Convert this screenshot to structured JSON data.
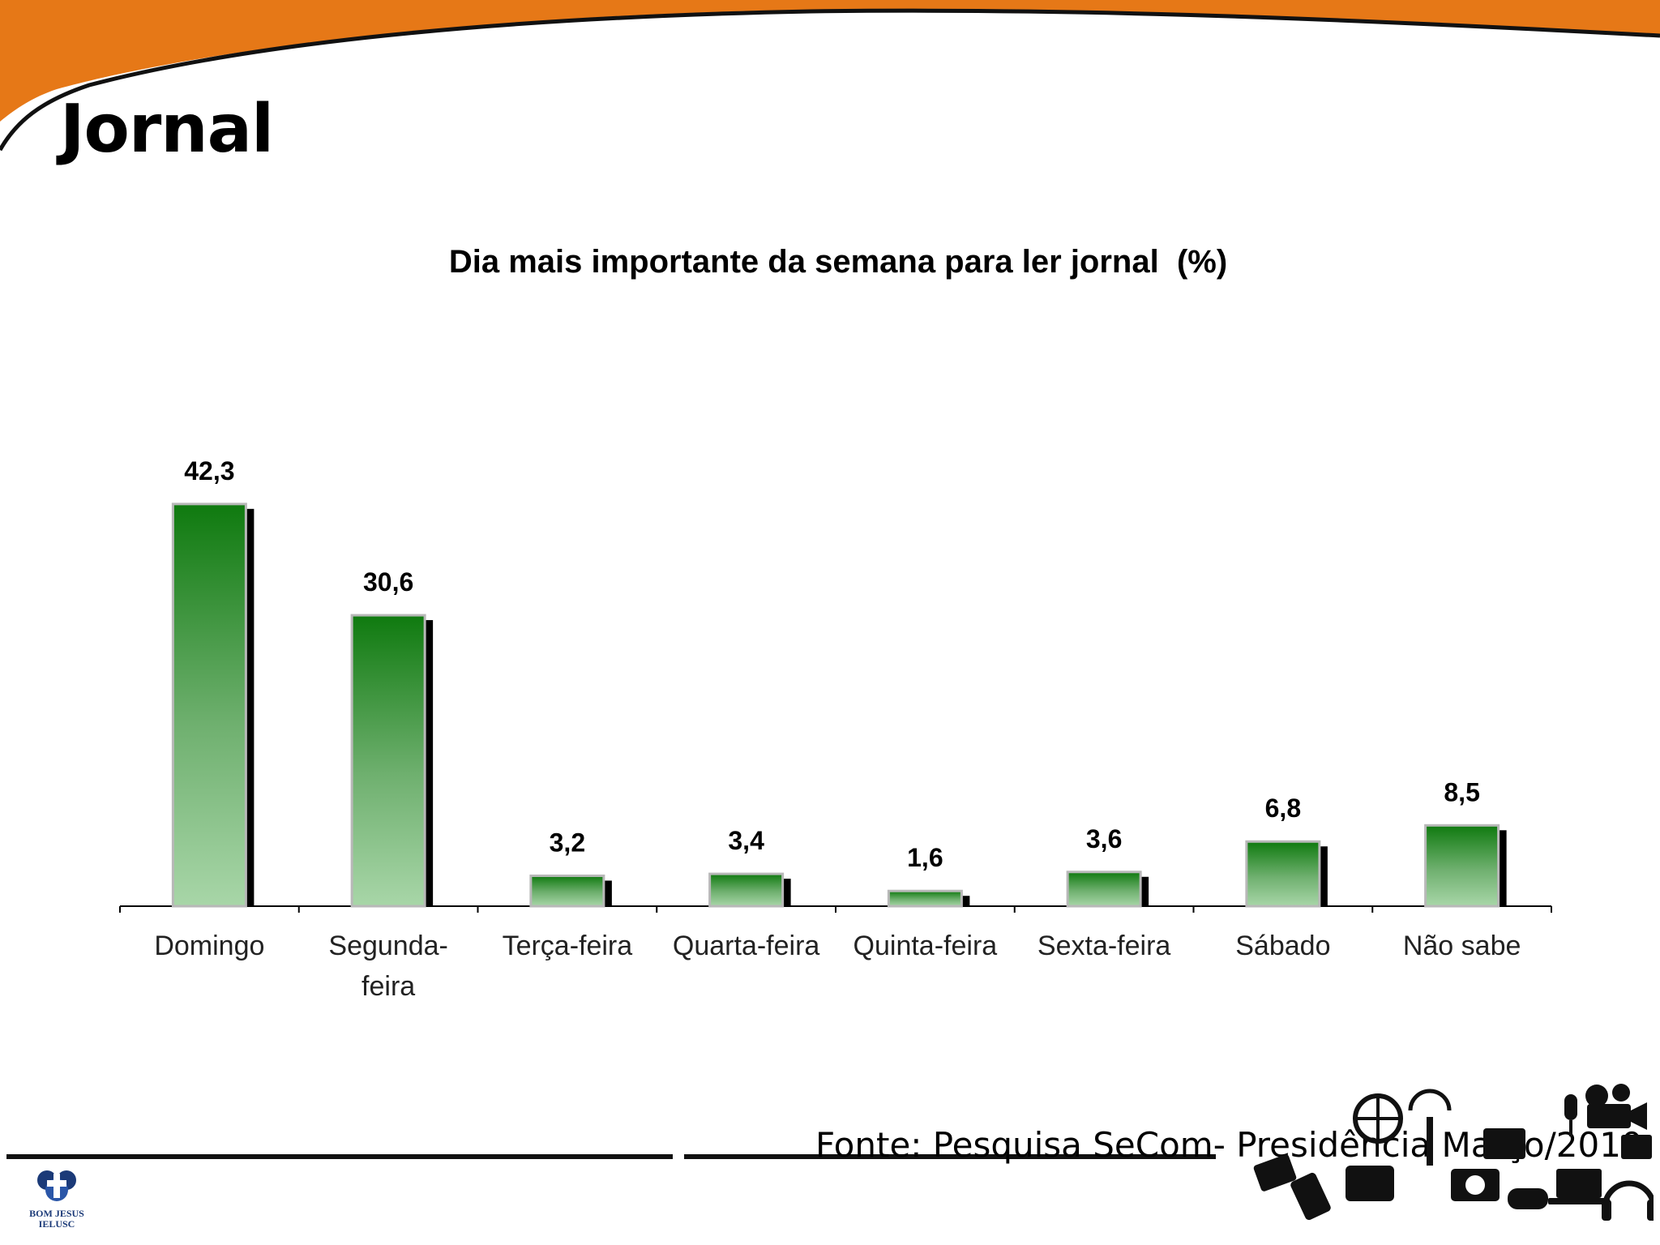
{
  "slide": {
    "title": "Jornal",
    "source": "Fonte: Pesquisa SeCom- Presidência Março/2010",
    "logo_text": "BOM JESUS\nIELUSC",
    "colors": {
      "accent": "#e67817",
      "bar_top": "#0f7a0f",
      "bar_bottom": "#a8d6a8",
      "shadow": "#000000"
    }
  },
  "chart_data": {
    "type": "bar",
    "title": "Dia mais importante da semana para ler jornal  (%)",
    "categories": [
      "Domingo",
      "Segunda-\nfeira",
      "Terça-feira",
      "Quarta-feira",
      "Quinta-feira",
      "Sexta-feira",
      "Sábado",
      "Não sabe"
    ],
    "values": [
      42.3,
      30.6,
      3.2,
      3.4,
      1.6,
      3.6,
      6.8,
      8.5
    ],
    "value_labels": [
      "42,3",
      "30,6",
      "3,2",
      "3,4",
      "1,6",
      "3,6",
      "6,8",
      "8,5"
    ],
    "xlabel": "",
    "ylabel": "",
    "grid": false,
    "legend": "none"
  }
}
